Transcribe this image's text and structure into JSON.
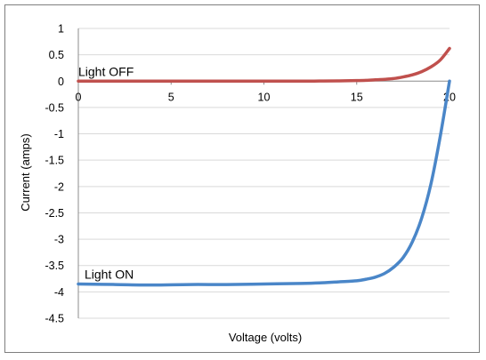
{
  "chart_data": {
    "type": "line",
    "title": "",
    "xlabel": "Voltage (volts)",
    "ylabel": "Current (amps)",
    "xlim": [
      0,
      20
    ],
    "ylim": [
      -4.5,
      1
    ],
    "x_ticks": [
      0,
      5,
      10,
      15,
      20
    ],
    "y_ticks": [
      1,
      0.5,
      0,
      -0.5,
      -1,
      -1.5,
      -2,
      -2.5,
      -3,
      -3.5,
      -4,
      -4.5
    ],
    "grid": "horizontal",
    "legend": "none",
    "series": [
      {
        "name": "Light OFF",
        "color": "#c0504d",
        "x": [
          0,
          2,
          4,
          6,
          8,
          10,
          12,
          13,
          14,
          15,
          15.5,
          16,
          16.5,
          17,
          17.5,
          18,
          18.5,
          19,
          19.5,
          20
        ],
        "y": [
          0,
          0,
          0,
          0,
          0,
          0,
          0,
          0.002,
          0.005,
          0.01,
          0.015,
          0.025,
          0.035,
          0.05,
          0.08,
          0.12,
          0.18,
          0.27,
          0.4,
          0.62
        ]
      },
      {
        "name": "Light ON",
        "color": "#4a86c8",
        "x": [
          0,
          2,
          4,
          6,
          8,
          10,
          12,
          13,
          14,
          15,
          15.5,
          16,
          16.5,
          17,
          17.5,
          18,
          18.5,
          19,
          19.5,
          20
        ],
        "y": [
          -3.85,
          -3.86,
          -3.87,
          -3.86,
          -3.86,
          -3.85,
          -3.84,
          -3.83,
          -3.81,
          -3.79,
          -3.76,
          -3.72,
          -3.65,
          -3.53,
          -3.35,
          -3.05,
          -2.6,
          -1.95,
          -1.05,
          0
        ]
      }
    ]
  }
}
